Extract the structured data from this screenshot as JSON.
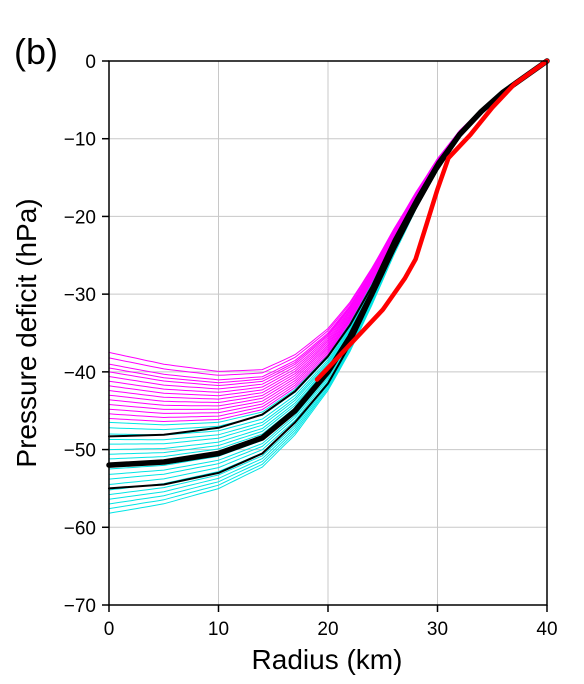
{
  "chart_data": {
    "type": "line",
    "panel_label": "(b)",
    "title": "",
    "xlabel": "Radius (km)",
    "ylabel": "Pressure deficit (hPa)",
    "xlim": [
      0,
      40
    ],
    "ylim": [
      -70,
      0
    ],
    "xticks": [
      0,
      10,
      20,
      30,
      40
    ],
    "yticks": [
      0,
      -10,
      -20,
      -30,
      -40,
      -50,
      -60,
      -70
    ],
    "grid": true,
    "legend": "none",
    "colors": {
      "ensemble_high": "#ff00ff",
      "ensemble_low": "#00e5e5",
      "mean": "#000000",
      "bounds": "#000000",
      "observed": "#ff0000",
      "grid": "#c8c8c8"
    },
    "ensemble_central_values": [
      -37.5,
      -38.2,
      -39,
      -39.5,
      -40,
      -40.6,
      -41.2,
      -41.8,
      -42.4,
      -43,
      -43.6,
      -44.2,
      -44.8,
      -45.4,
      -46,
      -46.5,
      -47.2,
      -48,
      -48.7,
      -49.3,
      -50,
      -50.6,
      -51.2,
      -51.8,
      -52.5,
      -53.2,
      -53.8,
      -54.5,
      -55.2,
      -55.8,
      -56.4,
      -57,
      -57.6,
      -58.2
    ],
    "series": [
      {
        "role": "mean",
        "x": [
          0,
          5,
          10,
          14,
          17,
          20,
          22,
          24,
          26,
          28,
          30,
          32,
          34,
          36,
          38,
          40
        ],
        "y": [
          -52,
          -51.6,
          -50.5,
          -48.5,
          -45,
          -40,
          -35.5,
          -30,
          -24,
          -18.5,
          -13.5,
          -9.5,
          -6.5,
          -4,
          -2,
          0
        ]
      },
      {
        "role": "upper-bound",
        "x": [
          0,
          5,
          10,
          14,
          17,
          20,
          22,
          24,
          26,
          28,
          30,
          32,
          34,
          36,
          38,
          40
        ],
        "y": [
          -48.3,
          -48.1,
          -47.2,
          -45.5,
          -42.5,
          -38,
          -34,
          -29,
          -23,
          -17.8,
          -13,
          -9.2,
          -6.3,
          -3.9,
          -1.9,
          0
        ]
      },
      {
        "role": "lower-bound",
        "x": [
          0,
          5,
          10,
          14,
          17,
          20,
          22,
          24,
          26,
          28,
          30,
          32,
          34,
          36,
          38,
          40
        ],
        "y": [
          -55,
          -54.5,
          -53,
          -50.5,
          -46.5,
          -41.5,
          -36.5,
          -30.5,
          -24.5,
          -19,
          -14,
          -9.8,
          -6.7,
          -4.1,
          -2,
          0
        ]
      },
      {
        "role": "observed",
        "x": [
          19,
          21,
          23,
          25,
          27,
          28,
          29,
          30,
          31,
          33,
          35,
          37,
          39,
          40
        ],
        "y": [
          -41,
          -38,
          -35,
          -32,
          -28,
          -25.5,
          -21,
          -16.5,
          -12.5,
          -9.5,
          -6,
          -3,
          -1,
          0
        ]
      }
    ]
  }
}
